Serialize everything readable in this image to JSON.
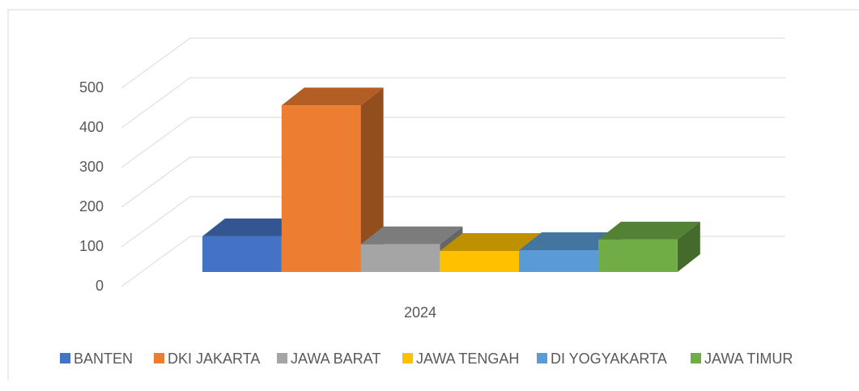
{
  "chart_data": {
    "type": "bar3d",
    "categories": [
      "2024"
    ],
    "series": [
      {
        "name": "BANTEN",
        "color": "#4472c4",
        "values": [
          90
        ]
      },
      {
        "name": "DKI JAKARTA",
        "color": "#ed7d31",
        "values": [
          420
        ]
      },
      {
        "name": "JAWA BARAT",
        "color": "#a5a5a5",
        "values": [
          70
        ]
      },
      {
        "name": "JAWA TENGAH",
        "color": "#ffc000",
        "values": [
          53
        ]
      },
      {
        "name": "DI YOGYAKARTA",
        "color": "#5b9bd5",
        "values": [
          55
        ]
      },
      {
        "name": "JAWA TIMUR",
        "color": "#70ad47",
        "values": [
          82
        ]
      }
    ],
    "ylim": [
      0,
      500
    ],
    "yticks": [
      0,
      100,
      200,
      300,
      400,
      500
    ],
    "grid": true,
    "legend": "bottom"
  }
}
